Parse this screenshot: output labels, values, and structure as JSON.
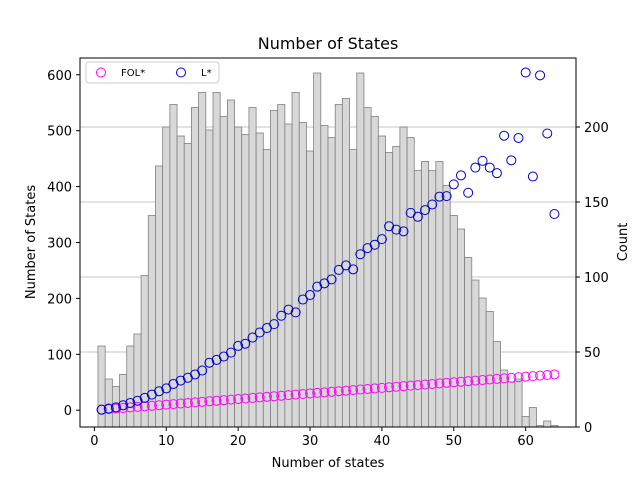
{
  "chart_data": {
    "type": "bar+scatter",
    "title": "Number of States",
    "xlabel": "Number of states",
    "ylabel_left": "Number of States",
    "ylabel_right": "Count",
    "xlim": [
      -2,
      67
    ],
    "ylim_left": [
      -30,
      630
    ],
    "ylim_right": [
      0,
      246
    ],
    "x_ticks": [
      0,
      10,
      20,
      30,
      40,
      50,
      60
    ],
    "y_ticks_left": [
      0,
      100,
      200,
      300,
      400,
      500,
      600
    ],
    "y_ticks_right": [
      0,
      50,
      100,
      150,
      200
    ],
    "grid_right_axis": true,
    "legend_location": "upper left",
    "histogram": {
      "axis": "right",
      "bin_width": 1,
      "bins": [
        {
          "x": 1,
          "count": 54
        },
        {
          "x": 2,
          "count": 32
        },
        {
          "x": 3,
          "count": 27
        },
        {
          "x": 4,
          "count": 35
        },
        {
          "x": 5,
          "count": 54
        },
        {
          "x": 6,
          "count": 62
        },
        {
          "x": 7,
          "count": 101
        },
        {
          "x": 8,
          "count": 141
        },
        {
          "x": 9,
          "count": 174
        },
        {
          "x": 10,
          "count": 200
        },
        {
          "x": 11,
          "count": 215
        },
        {
          "x": 12,
          "count": 194
        },
        {
          "x": 13,
          "count": 189
        },
        {
          "x": 14,
          "count": 213
        },
        {
          "x": 15,
          "count": 223
        },
        {
          "x": 16,
          "count": 198
        },
        {
          "x": 17,
          "count": 223
        },
        {
          "x": 18,
          "count": 207
        },
        {
          "x": 19,
          "count": 218
        },
        {
          "x": 20,
          "count": 200
        },
        {
          "x": 21,
          "count": 195
        },
        {
          "x": 22,
          "count": 213
        },
        {
          "x": 23,
          "count": 196
        },
        {
          "x": 24,
          "count": 185
        },
        {
          "x": 25,
          "count": 211
        },
        {
          "x": 26,
          "count": 215
        },
        {
          "x": 27,
          "count": 202
        },
        {
          "x": 28,
          "count": 223
        },
        {
          "x": 29,
          "count": 203
        },
        {
          "x": 30,
          "count": 184
        },
        {
          "x": 31,
          "count": 236
        },
        {
          "x": 32,
          "count": 201
        },
        {
          "x": 33,
          "count": 193
        },
        {
          "x": 34,
          "count": 215
        },
        {
          "x": 35,
          "count": 219
        },
        {
          "x": 36,
          "count": 185
        },
        {
          "x": 37,
          "count": 236
        },
        {
          "x": 38,
          "count": 213
        },
        {
          "x": 39,
          "count": 207
        },
        {
          "x": 40,
          "count": 194
        },
        {
          "x": 41,
          "count": 183
        },
        {
          "x": 42,
          "count": 187
        },
        {
          "x": 43,
          "count": 200
        },
        {
          "x": 44,
          "count": 193
        },
        {
          "x": 45,
          "count": 171
        },
        {
          "x": 46,
          "count": 177
        },
        {
          "x": 47,
          "count": 171
        },
        {
          "x": 48,
          "count": 177
        },
        {
          "x": 49,
          "count": 161
        },
        {
          "x": 50,
          "count": 141
        },
        {
          "x": 51,
          "count": 132
        },
        {
          "x": 52,
          "count": 113
        },
        {
          "x": 53,
          "count": 98
        },
        {
          "x": 54,
          "count": 86
        },
        {
          "x": 55,
          "count": 77
        },
        {
          "x": 56,
          "count": 57
        },
        {
          "x": 57,
          "count": 38
        },
        {
          "x": 58,
          "count": 30
        },
        {
          "x": 59,
          "count": 32
        },
        {
          "x": 60,
          "count": 7
        },
        {
          "x": 61,
          "count": 13
        },
        {
          "x": 62,
          "count": 1
        },
        {
          "x": 63,
          "count": 4
        },
        {
          "x": 64,
          "count": 1
        }
      ]
    },
    "series": [
      {
        "name": "FOL*",
        "axis": "left",
        "marker": "open-circle",
        "color": "#ff00ff",
        "points": [
          {
            "x": 1,
            "y": 1
          },
          {
            "x": 2,
            "y": 2
          },
          {
            "x": 3,
            "y": 3
          },
          {
            "x": 4,
            "y": 4
          },
          {
            "x": 5,
            "y": 5
          },
          {
            "x": 6,
            "y": 6
          },
          {
            "x": 7,
            "y": 7
          },
          {
            "x": 8,
            "y": 8
          },
          {
            "x": 9,
            "y": 9
          },
          {
            "x": 10,
            "y": 10
          },
          {
            "x": 11,
            "y": 11
          },
          {
            "x": 12,
            "y": 12
          },
          {
            "x": 13,
            "y": 13
          },
          {
            "x": 14,
            "y": 14
          },
          {
            "x": 15,
            "y": 15
          },
          {
            "x": 16,
            "y": 16
          },
          {
            "x": 17,
            "y": 17
          },
          {
            "x": 18,
            "y": 18
          },
          {
            "x": 19,
            "y": 19
          },
          {
            "x": 20,
            "y": 20
          },
          {
            "x": 21,
            "y": 21
          },
          {
            "x": 22,
            "y": 22
          },
          {
            "x": 23,
            "y": 23
          },
          {
            "x": 24,
            "y": 24
          },
          {
            "x": 25,
            "y": 25
          },
          {
            "x": 26,
            "y": 26
          },
          {
            "x": 27,
            "y": 27
          },
          {
            "x": 28,
            "y": 28
          },
          {
            "x": 29,
            "y": 29
          },
          {
            "x": 30,
            "y": 30
          },
          {
            "x": 31,
            "y": 31
          },
          {
            "x": 32,
            "y": 32
          },
          {
            "x": 33,
            "y": 33
          },
          {
            "x": 34,
            "y": 34
          },
          {
            "x": 35,
            "y": 35
          },
          {
            "x": 36,
            "y": 36
          },
          {
            "x": 37,
            "y": 37
          },
          {
            "x": 38,
            "y": 38
          },
          {
            "x": 39,
            "y": 39
          },
          {
            "x": 40,
            "y": 40
          },
          {
            "x": 41,
            "y": 41
          },
          {
            "x": 42,
            "y": 42
          },
          {
            "x": 43,
            "y": 43
          },
          {
            "x": 44,
            "y": 44
          },
          {
            "x": 45,
            "y": 45
          },
          {
            "x": 46,
            "y": 46
          },
          {
            "x": 47,
            "y": 47
          },
          {
            "x": 48,
            "y": 48
          },
          {
            "x": 49,
            "y": 49
          },
          {
            "x": 50,
            "y": 50
          },
          {
            "x": 51,
            "y": 51
          },
          {
            "x": 52,
            "y": 52
          },
          {
            "x": 53,
            "y": 53
          },
          {
            "x": 54,
            "y": 54
          },
          {
            "x": 55,
            "y": 55
          },
          {
            "x": 56,
            "y": 56
          },
          {
            "x": 57,
            "y": 57
          },
          {
            "x": 58,
            "y": 58
          },
          {
            "x": 59,
            "y": 59
          },
          {
            "x": 60,
            "y": 60
          },
          {
            "x": 61,
            "y": 61
          },
          {
            "x": 62,
            "y": 62
          },
          {
            "x": 63,
            "y": 63
          },
          {
            "x": 64,
            "y": 64
          }
        ]
      },
      {
        "name": "L*",
        "axis": "left",
        "marker": "open-circle",
        "color": "#0000cc",
        "points": [
          {
            "x": 1,
            "y": 1
          },
          {
            "x": 2,
            "y": 3
          },
          {
            "x": 3,
            "y": 5
          },
          {
            "x": 4,
            "y": 9
          },
          {
            "x": 5,
            "y": 13
          },
          {
            "x": 6,
            "y": 17
          },
          {
            "x": 7,
            "y": 22
          },
          {
            "x": 8,
            "y": 28
          },
          {
            "x": 9,
            "y": 34
          },
          {
            "x": 10,
            "y": 39
          },
          {
            "x": 11,
            "y": 47
          },
          {
            "x": 12,
            "y": 53
          },
          {
            "x": 13,
            "y": 58
          },
          {
            "x": 14,
            "y": 64
          },
          {
            "x": 15,
            "y": 71
          },
          {
            "x": 16,
            "y": 85
          },
          {
            "x": 17,
            "y": 90
          },
          {
            "x": 18,
            "y": 96
          },
          {
            "x": 19,
            "y": 103
          },
          {
            "x": 20,
            "y": 115
          },
          {
            "x": 21,
            "y": 119
          },
          {
            "x": 22,
            "y": 130
          },
          {
            "x": 23,
            "y": 139
          },
          {
            "x": 24,
            "y": 147
          },
          {
            "x": 25,
            "y": 154
          },
          {
            "x": 26,
            "y": 169
          },
          {
            "x": 27,
            "y": 180
          },
          {
            "x": 28,
            "y": 175
          },
          {
            "x": 29,
            "y": 198
          },
          {
            "x": 30,
            "y": 206
          },
          {
            "x": 31,
            "y": 221
          },
          {
            "x": 32,
            "y": 227
          },
          {
            "x": 33,
            "y": 234
          },
          {
            "x": 34,
            "y": 251
          },
          {
            "x": 35,
            "y": 259
          },
          {
            "x": 36,
            "y": 252
          },
          {
            "x": 37,
            "y": 279
          },
          {
            "x": 38,
            "y": 290
          },
          {
            "x": 39,
            "y": 296
          },
          {
            "x": 40,
            "y": 306
          },
          {
            "x": 41,
            "y": 329
          },
          {
            "x": 42,
            "y": 323
          },
          {
            "x": 43,
            "y": 320
          },
          {
            "x": 44,
            "y": 353
          },
          {
            "x": 45,
            "y": 346
          },
          {
            "x": 46,
            "y": 358
          },
          {
            "x": 47,
            "y": 368
          },
          {
            "x": 48,
            "y": 382
          },
          {
            "x": 49,
            "y": 383
          },
          {
            "x": 50,
            "y": 404
          },
          {
            "x": 51,
            "y": 420
          },
          {
            "x": 52,
            "y": 389
          },
          {
            "x": 53,
            "y": 434
          },
          {
            "x": 54,
            "y": 446
          },
          {
            "x": 55,
            "y": 434
          },
          {
            "x": 56,
            "y": 424
          },
          {
            "x": 57,
            "y": 491
          },
          {
            "x": 58,
            "y": 447
          },
          {
            "x": 59,
            "y": 487
          },
          {
            "x": 60,
            "y": 604
          },
          {
            "x": 61,
            "y": 418
          },
          {
            "x": 62,
            "y": 599
          },
          {
            "x": 63,
            "y": 495
          },
          {
            "x": 64,
            "y": 351
          }
        ]
      }
    ],
    "colors": {
      "bar_fill": "#d8d8d8",
      "bar_edge": "#808080",
      "grid": "#b0b0b0"
    }
  }
}
